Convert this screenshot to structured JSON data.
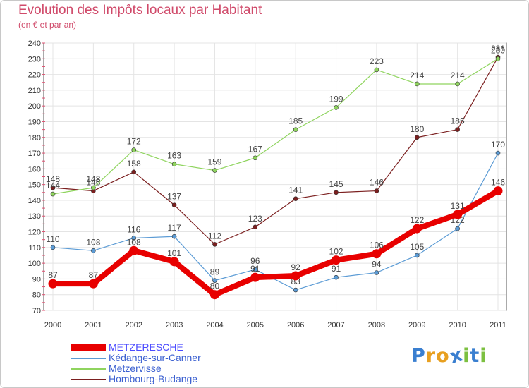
{
  "chart_data": {
    "type": "line",
    "title": "Evolution des Impôts locaux par Habitant",
    "subtitle": "(en € et par an)",
    "categories": [
      "2000",
      "2001",
      "2002",
      "2003",
      "2004",
      "2005",
      "2006",
      "2007",
      "2008",
      "2009",
      "2010",
      "2011"
    ],
    "ylim": [
      70,
      240
    ],
    "yticks": [
      70,
      80,
      90,
      100,
      110,
      120,
      130,
      140,
      150,
      160,
      170,
      180,
      190,
      200,
      210,
      220,
      230,
      240
    ],
    "grid": true,
    "legend_position": "bottom-left",
    "series": [
      {
        "name": "METZERESCHE",
        "color": "#e80000",
        "values": [
          87,
          87,
          108,
          101,
          80,
          91,
          92,
          102,
          106,
          122,
          131,
          146
        ]
      },
      {
        "name": "Kédange-sur-Canner",
        "color": "#5b9bd5",
        "values": [
          110,
          108,
          116,
          117,
          89,
          96,
          83,
          91,
          94,
          105,
          122,
          170
        ]
      },
      {
        "name": "Metzervisse",
        "color": "#8fd45e",
        "values": [
          144,
          148,
          172,
          163,
          159,
          167,
          185,
          199,
          223,
          214,
          214,
          230
        ]
      },
      {
        "name": "Hombourg-Budange",
        "color": "#7b1f1f",
        "values": [
          148,
          146,
          158,
          137,
          112,
          123,
          141,
          145,
          146,
          180,
          185,
          231
        ]
      }
    ]
  },
  "logo": {
    "text": "Proxiti",
    "letters": [
      "P",
      "r",
      "o",
      "x",
      "i",
      "t",
      "i"
    ]
  }
}
